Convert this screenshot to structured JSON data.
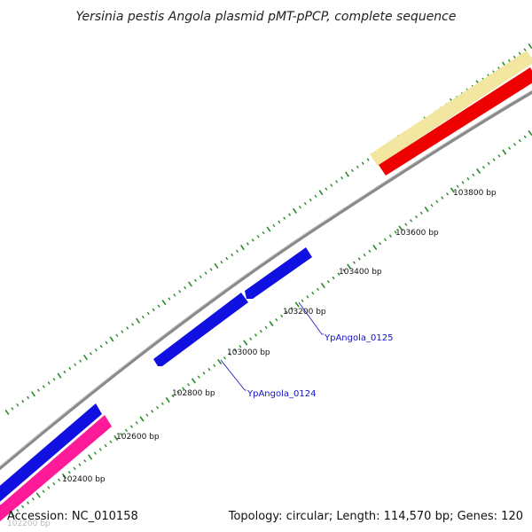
{
  "title": "Yersinia pestis Angola plasmid pMT-pPCP, complete sequence",
  "footer": {
    "accession": "Accession: NC_010158",
    "summary": "Topology: circular; Length: 114,570 bp; Genes: 120"
  },
  "colors": {
    "backbone": "#8a8a8a",
    "tick": "#2a8a2a",
    "gene_blue": "#1010e0",
    "gene_red": "#ee0000",
    "gene_pink": "#ff1a9a",
    "gene_yellow": "#f2e6a0",
    "label_blue": "#1010c8"
  },
  "scale": {
    "labels": [
      {
        "bp": 102200,
        "text": "102200 bp",
        "faded": true
      },
      {
        "bp": 102400,
        "text": "102400 bp"
      },
      {
        "bp": 102600,
        "text": "102600 bp"
      },
      {
        "bp": 102800,
        "text": "102800 bp"
      },
      {
        "bp": 103000,
        "text": "103000 bp"
      },
      {
        "bp": 103200,
        "text": "103200 bp"
      },
      {
        "bp": 103400,
        "text": "103400 bp"
      },
      {
        "bp": 103600,
        "text": "103600 bp"
      },
      {
        "bp": 103800,
        "text": "103800 bp"
      }
    ]
  },
  "gene_labels": [
    {
      "name": "YpAngola_0124"
    },
    {
      "name": "YpAngola_0125"
    }
  ]
}
